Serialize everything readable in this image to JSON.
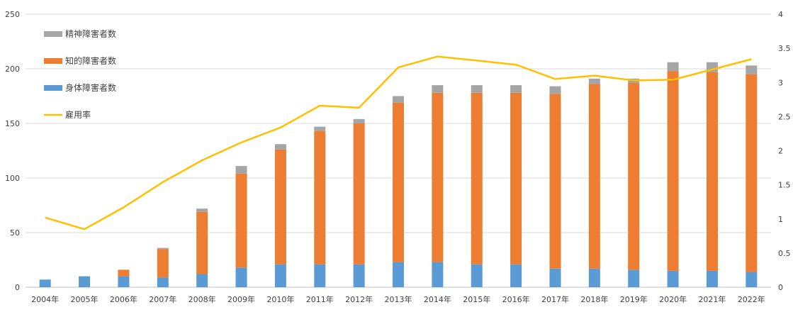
{
  "chart_data": {
    "type": "bar",
    "stacked": true,
    "categories": [
      "2004年",
      "2005年",
      "2006年",
      "2007年",
      "2008年",
      "2009年",
      "2010年",
      "2011年",
      "2012年",
      "2013年",
      "2014年",
      "2015年",
      "2016年",
      "2017年",
      "2018年",
      "2019年",
      "2020年",
      "2021年",
      "2022年"
    ],
    "series": [
      {
        "name": "身体障害者数",
        "color": "#5b9bd5",
        "axis": "left",
        "kind": "bar",
        "values": [
          7,
          10,
          10,
          9,
          12,
          18,
          21,
          21,
          21,
          23,
          23,
          21,
          21,
          17,
          17,
          16,
          15,
          15,
          14
        ]
      },
      {
        "name": "知的障害者数",
        "color": "#ed7d31",
        "axis": "left",
        "kind": "bar",
        "values": [
          0,
          0,
          6,
          26,
          57,
          86,
          105,
          122,
          129,
          146,
          155,
          157,
          157,
          160,
          169,
          171,
          183,
          182,
          181
        ]
      },
      {
        "name": "精神障害者数",
        "color": "#a5a5a5",
        "axis": "left",
        "kind": "bar",
        "values": [
          0,
          0,
          0,
          1,
          3,
          7,
          5,
          4,
          4,
          6,
          7,
          7,
          7,
          7,
          5,
          4,
          8,
          9,
          8
        ]
      },
      {
        "name": "雇用率",
        "color": "#ffc000",
        "axis": "right",
        "kind": "line",
        "values": [
          1.02,
          0.85,
          1.17,
          1.54,
          1.86,
          2.12,
          2.34,
          2.66,
          2.63,
          3.22,
          3.38,
          3.32,
          3.26,
          3.05,
          3.1,
          3.03,
          3.04,
          3.19,
          3.34
        ]
      }
    ],
    "ylim": [
      0,
      250
    ],
    "yticks": [
      "0",
      "50",
      "100",
      "150",
      "200",
      "250"
    ],
    "ylim_right": [
      0,
      4
    ],
    "yticks_right": [
      "0",
      "0.5",
      "1",
      "1.5",
      "2",
      "2.5",
      "3",
      "3.5",
      "4"
    ],
    "grid": true,
    "legend_position": "top-left",
    "legend_order": [
      "精神障害者数",
      "知的障害者数",
      "身体障害者数",
      "雇用率"
    ]
  }
}
